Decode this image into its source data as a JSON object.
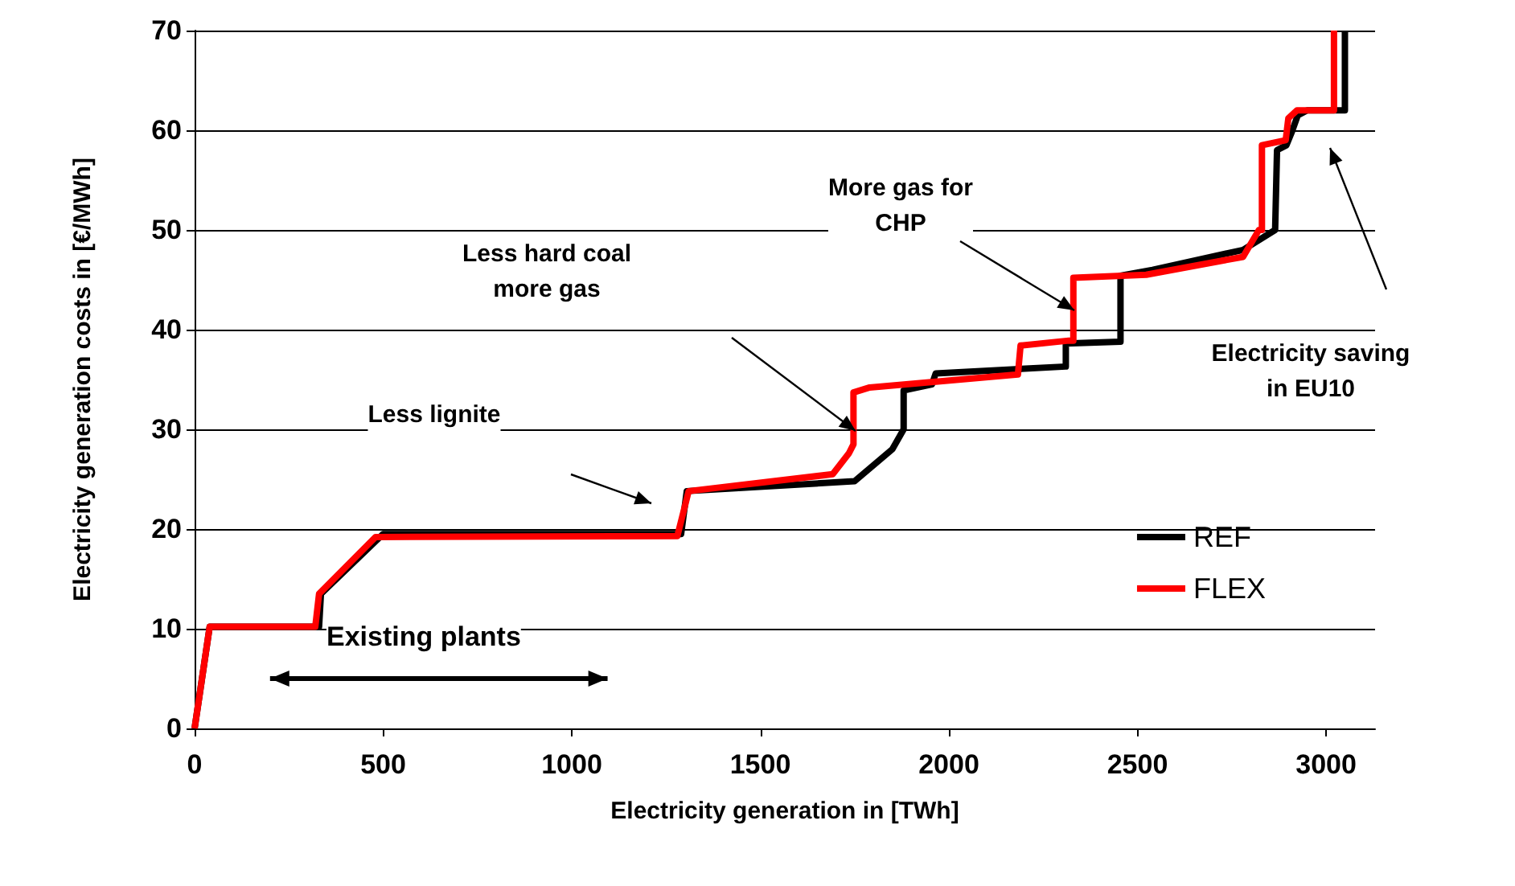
{
  "chart_data": {
    "type": "step",
    "xlabel": "Electricity generation in [TWh]",
    "ylabel": "Electricity generation costs in [€/MWh]",
    "xlim": [
      0,
      3130
    ],
    "xticks": [
      0,
      500,
      1000,
      1500,
      2000,
      2500,
      3000
    ],
    "ylim": [
      0,
      70
    ],
    "yticks": [
      0,
      10,
      20,
      30,
      40,
      50,
      60,
      70
    ],
    "grid": "y",
    "legend": "right",
    "marker": "none",
    "line_style": "solid",
    "series": [
      {
        "name": "REF",
        "color": "#000000",
        "x": [
          0,
          40,
          330,
          335,
          500,
          1290,
          1305,
          1750,
          1850,
          1880,
          1880,
          1955,
          1965,
          2310,
          2310,
          2455,
          2455,
          2540,
          2780,
          2865,
          2870,
          2895,
          2910,
          2925,
          2950,
          3050,
          3050
        ],
        "values": [
          0,
          10.2,
          10.2,
          13.5,
          19.5,
          19.5,
          23.8,
          24.8,
          28,
          30,
          33.9,
          34.5,
          35.6,
          36.3,
          38.6,
          38.8,
          45.4,
          46,
          48,
          50,
          58,
          58.5,
          59.9,
          61.5,
          62,
          62,
          70
        ]
      },
      {
        "name": "FLEX",
        "color": "#ff0000",
        "x": [
          0,
          40,
          320,
          330,
          480,
          1280,
          1310,
          1692,
          1735,
          1747,
          1747,
          1790,
          2183,
          2190,
          2318,
          2330,
          2330,
          2523,
          2780,
          2822,
          2830,
          2830,
          2893,
          2900,
          2923,
          3021,
          3021
        ],
        "values": [
          0,
          10.2,
          10.2,
          13.5,
          19.2,
          19.3,
          23.8,
          25.5,
          27.6,
          28.5,
          33.7,
          34.2,
          35.5,
          38.4,
          38.9,
          38.9,
          45.2,
          45.5,
          47.3,
          50,
          50,
          58.5,
          59,
          61.2,
          62,
          62,
          70
        ]
      }
    ],
    "annotations": [
      "Less lignite",
      "Less hard coal\nmore gas",
      "More gas for\nCHP",
      "Electricity saving\nin EU10",
      "Existing plants"
    ]
  }
}
